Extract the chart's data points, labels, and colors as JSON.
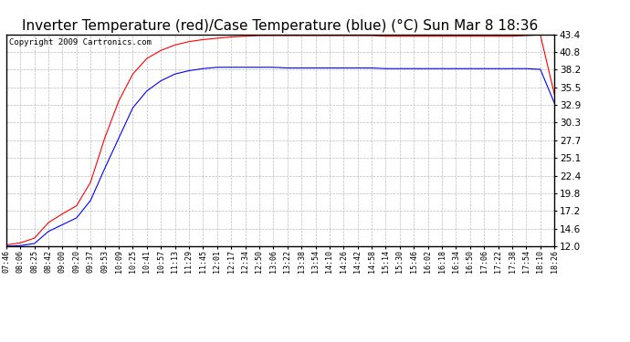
{
  "title": "Inverter Temperature (red)/Case Temperature (blue) (°C) Sun Mar 8 18:36",
  "copyright": "Copyright 2009 Cartronics.com",
  "yticks": [
    12.0,
    14.6,
    17.2,
    19.8,
    22.4,
    25.1,
    27.7,
    30.3,
    32.9,
    35.5,
    38.2,
    40.8,
    43.4
  ],
  "ymin": 12.0,
  "ymax": 43.4,
  "xtick_labels": [
    "07:46",
    "08:06",
    "08:25",
    "08:42",
    "09:00",
    "09:20",
    "09:37",
    "09:53",
    "10:09",
    "10:25",
    "10:41",
    "10:57",
    "11:13",
    "11:29",
    "11:45",
    "12:01",
    "12:17",
    "12:34",
    "12:50",
    "13:06",
    "13:22",
    "13:38",
    "13:54",
    "14:10",
    "14:26",
    "14:42",
    "14:58",
    "15:14",
    "15:30",
    "15:46",
    "16:02",
    "16:18",
    "16:34",
    "16:50",
    "17:06",
    "17:22",
    "17:38",
    "17:54",
    "18:10",
    "18:26"
  ],
  "background_color": "#ffffff",
  "plot_bg_color": "#ffffff",
  "grid_color": "#bbbbbb",
  "line_red_color": "#ff0000",
  "line_blue_color": "#0000ff",
  "title_fontsize": 11,
  "copyright_fontsize": 6.5,
  "red_data": [
    12.2,
    12.5,
    13.2,
    15.5,
    16.8,
    18.0,
    21.5,
    28.0,
    33.5,
    37.5,
    39.8,
    41.0,
    41.8,
    42.3,
    42.6,
    42.8,
    43.0,
    43.1,
    43.2,
    43.2,
    43.2,
    43.2,
    43.2,
    43.2,
    43.2,
    43.2,
    43.2,
    43.1,
    43.1,
    43.1,
    43.1,
    43.1,
    43.1,
    43.1,
    43.1,
    43.1,
    43.1,
    43.2,
    43.3,
    34.5
  ],
  "blue_data": [
    12.0,
    12.1,
    12.4,
    14.2,
    15.2,
    16.2,
    18.8,
    23.5,
    28.0,
    32.5,
    35.0,
    36.5,
    37.5,
    38.0,
    38.3,
    38.5,
    38.5,
    38.5,
    38.5,
    38.5,
    38.4,
    38.4,
    38.4,
    38.4,
    38.4,
    38.4,
    38.4,
    38.3,
    38.3,
    38.3,
    38.3,
    38.3,
    38.3,
    38.3,
    38.3,
    38.3,
    38.3,
    38.3,
    38.2,
    33.2
  ]
}
